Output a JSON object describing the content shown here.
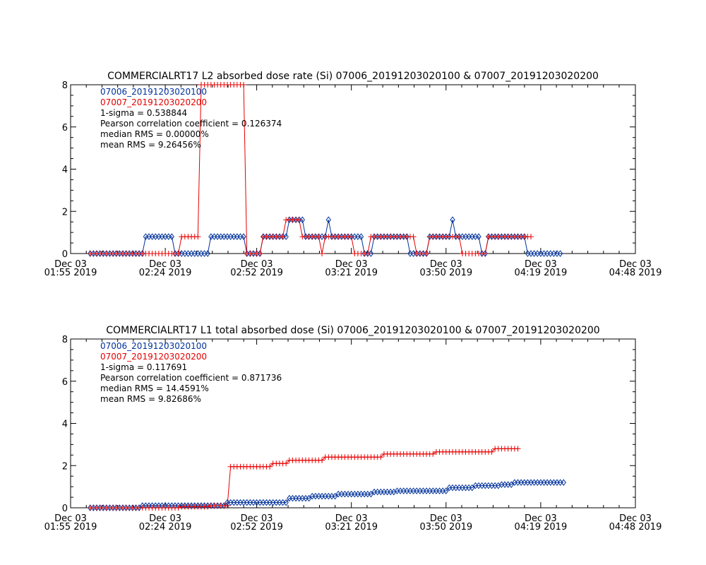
{
  "colors": {
    "background": "#ffffff",
    "axes": "#000000",
    "series_a": "#00329b",
    "series_b": "#e60000",
    "text": "#000000"
  },
  "chart_data": [
    {
      "type": "line",
      "title": "COMMERCIALRT17 L2 absorbed dose rate (Si) 07006_20191203020100 & 07007_20191203020200",
      "ylim": [
        0,
        8
      ],
      "yticks": [
        "0",
        "2",
        "4",
        "6",
        "8"
      ],
      "xlim_minutes": [
        115,
        288
      ],
      "xticks": [
        {
          "line1": "Dec 03",
          "line2": "01:55 2019",
          "minute": 115
        },
        {
          "line1": "Dec 03",
          "line2": "02:24 2019",
          "minute": 144
        },
        {
          "line1": "Dec 03",
          "line2": "02:52 2019",
          "minute": 172
        },
        {
          "line1": "Dec 03",
          "line2": "03:21 2019",
          "minute": 201
        },
        {
          "line1": "Dec 03",
          "line2": "03:50 2019",
          "minute": 230
        },
        {
          "line1": "Dec 03",
          "line2": "04:19 2019",
          "minute": 259
        },
        {
          "line1": "Dec 03",
          "line2": "04:48 2019",
          "minute": 288
        }
      ],
      "annotations": [
        {
          "text": "07006_20191203020100",
          "color_key": "series_a"
        },
        {
          "text": "07007_20191203020200",
          "color_key": "series_b"
        },
        {
          "text": "1-sigma = 0.538844",
          "color_key": "text"
        },
        {
          "text": "Pearson correlation coefficient = 0.126374",
          "color_key": "text"
        },
        {
          "text": "median RMS = 0.00000%",
          "color_key": "text"
        },
        {
          "text": "mean RMS = 9.26456%",
          "color_key": "text"
        }
      ],
      "series": [
        {
          "name": "07006_20191203020100",
          "color_key": "series_a",
          "marker": "diamond",
          "points": [
            [
              121,
              0
            ],
            [
              137,
              0
            ],
            [
              138,
              0.8
            ],
            [
              146,
              0.8
            ],
            [
              147,
              0
            ],
            [
              157,
              0
            ],
            [
              158,
              0.8
            ],
            [
              168,
              0.8
            ],
            [
              169,
              0
            ],
            [
              173,
              0
            ],
            [
              174,
              0.8
            ],
            [
              181,
              0.8
            ],
            [
              182,
              1.6
            ],
            [
              186,
              1.6
            ],
            [
              187,
              0.8
            ],
            [
              193,
              0.8
            ],
            [
              194,
              1.6
            ],
            [
              195,
              0.8
            ],
            [
              204,
              0.8
            ],
            [
              205,
              0
            ],
            [
              207,
              0
            ],
            [
              208,
              0.8
            ],
            [
              218,
              0.8
            ],
            [
              219,
              0
            ],
            [
              224,
              0
            ],
            [
              225,
              0.8
            ],
            [
              231,
              0.8
            ],
            [
              232,
              1.6
            ],
            [
              233,
              0.8
            ],
            [
              240,
              0.8
            ],
            [
              241,
              0
            ],
            [
              242,
              0
            ],
            [
              243,
              0.8
            ],
            [
              254,
              0.8
            ],
            [
              255,
              0
            ],
            [
              265,
              0
            ]
          ]
        },
        {
          "name": "07007_20191203020200",
          "color_key": "series_b",
          "marker": "plus",
          "points": [
            [
              121,
              0
            ],
            [
              148,
              0
            ],
            [
              149,
              0.8
            ],
            [
              154,
              0.8
            ],
            [
              155,
              8
            ],
            [
              168,
              8
            ],
            [
              169,
              0
            ],
            [
              173,
              0
            ],
            [
              174,
              0.8
            ],
            [
              180,
              0.8
            ],
            [
              181,
              1.6
            ],
            [
              185,
              1.6
            ],
            [
              186,
              0.8
            ],
            [
              191,
              0.8
            ],
            [
              192,
              0
            ],
            [
              193,
              0.8
            ],
            [
              201,
              0.8
            ],
            [
              202,
              0
            ],
            [
              206,
              0
            ],
            [
              207,
              0.8
            ],
            [
              220,
              0.8
            ],
            [
              221,
              0
            ],
            [
              224,
              0
            ],
            [
              225,
              0.8
            ],
            [
              234,
              0.8
            ],
            [
              235,
              0
            ],
            [
              242,
              0
            ],
            [
              243,
              0.8
            ],
            [
              256,
              0.8
            ]
          ]
        }
      ]
    },
    {
      "type": "line",
      "title": "COMMERCIALRT17 L1 total absorbed dose (Si) 07006_20191203020100 & 07007_20191203020200",
      "ylim": [
        0,
        8
      ],
      "yticks": [
        "0",
        "2",
        "4",
        "6",
        "8"
      ],
      "xlim_minutes": [
        115,
        288
      ],
      "xticks": [
        {
          "line1": "Dec 03",
          "line2": "01:55 2019",
          "minute": 115
        },
        {
          "line1": "Dec 03",
          "line2": "02:24 2019",
          "minute": 144
        },
        {
          "line1": "Dec 03",
          "line2": "02:52 2019",
          "minute": 172
        },
        {
          "line1": "Dec 03",
          "line2": "03:21 2019",
          "minute": 201
        },
        {
          "line1": "Dec 03",
          "line2": "03:50 2019",
          "minute": 230
        },
        {
          "line1": "Dec 03",
          "line2": "04:19 2019",
          "minute": 259
        },
        {
          "line1": "Dec 03",
          "line2": "04:48 2019",
          "minute": 288
        }
      ],
      "annotations": [
        {
          "text": "07006_20191203020100",
          "color_key": "series_a"
        },
        {
          "text": "07007_20191203020200",
          "color_key": "series_b"
        },
        {
          "text": "1-sigma = 0.117691",
          "color_key": "text"
        },
        {
          "text": "Pearson correlation coefficient = 0.871736",
          "color_key": "text"
        },
        {
          "text": "median RMS = 14.4591%",
          "color_key": "text"
        },
        {
          "text": "mean RMS = 9.82686%",
          "color_key": "text"
        }
      ],
      "series": [
        {
          "name": "07006_20191203020100",
          "color_key": "series_a",
          "marker": "diamond",
          "points": [
            [
              121,
              0
            ],
            [
              136,
              0
            ],
            [
              137,
              0.1
            ],
            [
              156,
              0.1
            ],
            [
              157,
              0.1
            ],
            [
              162,
              0.1
            ],
            [
              163,
              0.25
            ],
            [
              172,
              0.25
            ],
            [
              173,
              0.25
            ],
            [
              181,
              0.25
            ],
            [
              182,
              0.45
            ],
            [
              188,
              0.45
            ],
            [
              189,
              0.55
            ],
            [
              196,
              0.55
            ],
            [
              197,
              0.65
            ],
            [
              207,
              0.65
            ],
            [
              208,
              0.75
            ],
            [
              214,
              0.75
            ],
            [
              215,
              0.8
            ],
            [
              230,
              0.8
            ],
            [
              231,
              0.95
            ],
            [
              238,
              0.95
            ],
            [
              239,
              1.05
            ],
            [
              246,
              1.05
            ],
            [
              247,
              1.1
            ],
            [
              250,
              1.1
            ],
            [
              251,
              1.2
            ],
            [
              255,
              1.2
            ],
            [
              266,
              1.2
            ]
          ]
        },
        {
          "name": "07007_20191203020200",
          "color_key": "series_b",
          "marker": "plus",
          "points": [
            [
              121,
              0
            ],
            [
              148,
              0
            ],
            [
              149,
              0.05
            ],
            [
              157,
              0.05
            ],
            [
              158,
              0.1
            ],
            [
              163,
              0.1
            ],
            [
              164,
              1.95
            ],
            [
              176,
              1.95
            ],
            [
              177,
              2.1
            ],
            [
              181,
              2.1
            ],
            [
              182,
              2.25
            ],
            [
              192,
              2.25
            ],
            [
              193,
              2.4
            ],
            [
              210,
              2.4
            ],
            [
              211,
              2.55
            ],
            [
              226,
              2.55
            ],
            [
              227,
              2.65
            ],
            [
              244,
              2.65
            ],
            [
              245,
              2.8
            ],
            [
              252,
              2.8
            ]
          ]
        }
      ]
    }
  ]
}
